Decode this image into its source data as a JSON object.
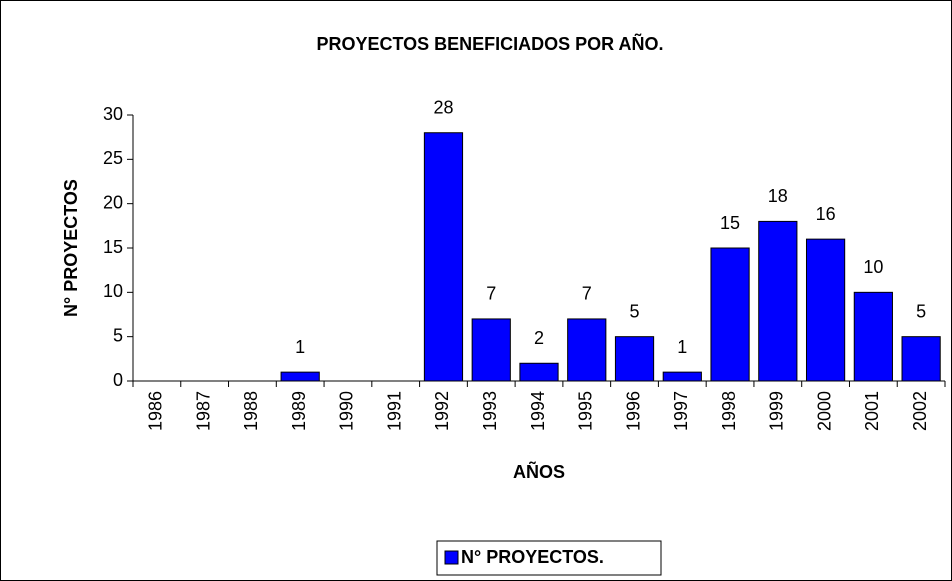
{
  "chart_data": {
    "type": "bar",
    "title": "PROYECTOS BENEFICIADOS POR AÑO.",
    "x_label": "AÑOS",
    "y_label": "N° PROYECTOS",
    "categories": [
      "1986",
      "1987",
      "1988",
      "1989",
      "1990",
      "1991",
      "1992",
      "1993",
      "1994",
      "1995",
      "1996",
      "1997",
      "1998",
      "1999",
      "2000",
      "2001",
      "2002"
    ],
    "series": [
      {
        "name": "N° PROYECTOS.",
        "color": "#0000ff",
        "values": [
          0,
          0,
          0,
          1,
          0,
          0,
          28,
          7,
          2,
          7,
          5,
          1,
          15,
          18,
          16,
          10,
          5
        ],
        "value_labels": [
          null,
          null,
          null,
          1,
          null,
          null,
          28,
          7,
          2,
          7,
          5,
          1,
          15,
          18,
          16,
          10,
          5
        ]
      }
    ],
    "ylim": [
      0,
      30
    ],
    "yticks": [
      0,
      5,
      10,
      15,
      20,
      25,
      30
    ],
    "grid": false,
    "legend": "bottom"
  }
}
